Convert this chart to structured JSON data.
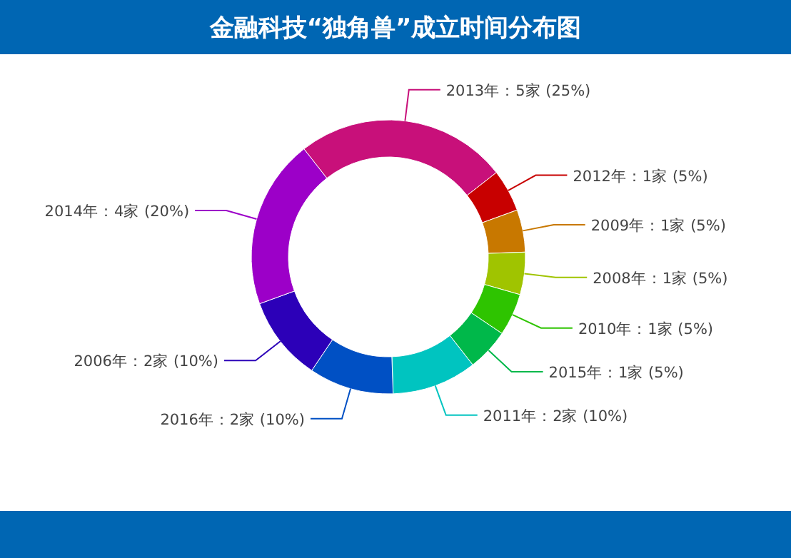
{
  "chart_data": {
    "type": "donut",
    "title": "金融科技“独角兽”成立时间分布图",
    "categories": [
      "2013年：5家 (25%)",
      "2012年：1家 (5%)",
      "2009年：1家 (5%)",
      "2008年：1家 (5%)",
      "2010年：1家 (5%)",
      "2015年：1家 (5%)",
      "2011年：2家 (10%)",
      "2016年：2家 (10%)",
      "2006年：2家 (10%)",
      "2014年：4家 (20%)"
    ],
    "values": [
      5,
      1,
      1,
      1,
      1,
      1,
      2,
      2,
      2,
      4
    ],
    "colors": [
      "#c8107a",
      "#c80000",
      "#c87800",
      "#a0c400",
      "#2ec400",
      "#00b84a",
      "#00c4c0",
      "#0050c4",
      "#2c00b8",
      "#9c00c8"
    ]
  }
}
